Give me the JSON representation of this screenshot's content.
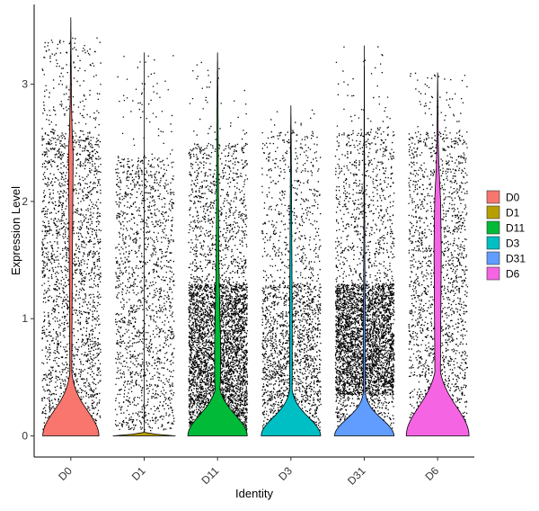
{
  "chart_data": {
    "type": "violin",
    "xlabel": "Identity",
    "ylabel": "Expression Level",
    "ylim": [
      -0.18,
      3.68
    ],
    "yticks": [
      0,
      1,
      2,
      3
    ],
    "grid": false,
    "legend": "right",
    "categories": [
      "D0",
      "D1",
      "D11",
      "D3",
      "D31",
      "D6"
    ],
    "colors": [
      "#F8766D",
      "#B79F00",
      "#00BA38",
      "#00BFC4",
      "#619CFF",
      "#F564E3"
    ],
    "series": [
      {
        "name": "D0",
        "max": 3.57,
        "zero_width": 0.85,
        "zero_spread": 0.3,
        "spine": [
          [
            0.3,
            0.04
          ],
          [
            0.6,
            0.03
          ],
          [
            1.2,
            0.04
          ],
          [
            1.6,
            0.05
          ],
          [
            2.0,
            0.06
          ],
          [
            2.4,
            0.07
          ],
          [
            2.6,
            0.04
          ],
          [
            2.85,
            0.02
          ],
          [
            3.57,
            0.0
          ]
        ],
        "points": [
          {
            "lo": 0.05,
            "hi": 2.6,
            "n": 2000
          },
          {
            "lo": 2.6,
            "hi": 3.4,
            "n": 180
          }
        ]
      },
      {
        "name": "D1",
        "max": 3.27,
        "zero_width": 0.95,
        "zero_spread": 0.015,
        "spine": [
          [
            0.02,
            0.0
          ],
          [
            3.27,
            0.0
          ]
        ],
        "points": [
          {
            "lo": 0.05,
            "hi": 2.4,
            "n": 1500
          },
          {
            "lo": 2.4,
            "hi": 3.25,
            "n": 60
          }
        ]
      },
      {
        "name": "D11",
        "max": 3.27,
        "zero_width": 0.9,
        "zero_spread": 0.25,
        "spine": [
          [
            0.3,
            0.06
          ],
          [
            0.5,
            0.09
          ],
          [
            0.8,
            0.09
          ],
          [
            1.2,
            0.06
          ],
          [
            1.5,
            0.04
          ],
          [
            2.0,
            0.03
          ],
          [
            2.5,
            0.02
          ],
          [
            3.0,
            0.01
          ],
          [
            3.27,
            0.0
          ]
        ],
        "points": [
          {
            "lo": 0.05,
            "hi": 1.3,
            "n": 3800
          },
          {
            "lo": 1.3,
            "hi": 2.5,
            "n": 800
          },
          {
            "lo": 2.5,
            "hi": 3.2,
            "n": 40
          }
        ]
      },
      {
        "name": "D3",
        "max": 2.82,
        "zero_width": 0.9,
        "zero_spread": 0.22,
        "spine": [
          [
            0.25,
            0.03
          ],
          [
            0.5,
            0.04
          ],
          [
            1.0,
            0.04
          ],
          [
            1.5,
            0.03
          ],
          [
            2.0,
            0.02
          ],
          [
            2.5,
            0.01
          ],
          [
            2.82,
            0.0
          ]
        ],
        "points": [
          {
            "lo": 0.05,
            "hi": 1.3,
            "n": 1600
          },
          {
            "lo": 1.3,
            "hi": 2.6,
            "n": 500
          },
          {
            "lo": 2.6,
            "hi": 2.8,
            "n": 10
          }
        ]
      },
      {
        "name": "D31",
        "max": 3.33,
        "zero_width": 0.9,
        "zero_spread": 0.2,
        "spine": [
          [
            0.25,
            0.02
          ],
          [
            0.6,
            0.03
          ],
          [
            0.9,
            0.03
          ],
          [
            1.3,
            0.02
          ],
          [
            2.0,
            0.01
          ],
          [
            3.33,
            0.0
          ]
        ],
        "points": [
          {
            "lo": 0.35,
            "hi": 1.3,
            "n": 3200
          },
          {
            "lo": 0.05,
            "hi": 0.35,
            "n": 300
          },
          {
            "lo": 1.3,
            "hi": 2.6,
            "n": 700
          },
          {
            "lo": 2.6,
            "hi": 3.33,
            "n": 50
          }
        ]
      },
      {
        "name": "D6",
        "max": 3.1,
        "zero_width": 0.95,
        "zero_spread": 0.35,
        "spine": [
          [
            0.35,
            0.08
          ],
          [
            0.8,
            0.09
          ],
          [
            1.2,
            0.1
          ],
          [
            1.6,
            0.11
          ],
          [
            2.0,
            0.09
          ],
          [
            2.3,
            0.04
          ],
          [
            2.5,
            0.02
          ],
          [
            3.1,
            0.0
          ]
        ],
        "points": [
          {
            "lo": 0.05,
            "hi": 2.6,
            "n": 1700
          },
          {
            "lo": 2.6,
            "hi": 3.1,
            "n": 60
          }
        ]
      }
    ]
  }
}
